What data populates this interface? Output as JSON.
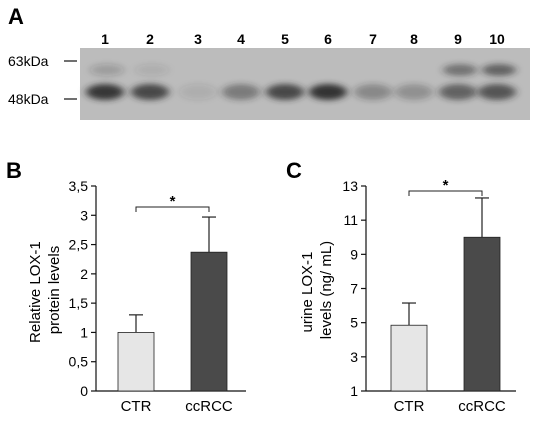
{
  "blot": {
    "panel_label": "A",
    "markers": [
      "63kDa",
      "48kDa"
    ],
    "lanes": [
      "1",
      "2",
      "3",
      "4",
      "5",
      "6",
      "7",
      "8",
      "9",
      "10"
    ],
    "band_intensity": [
      0.9,
      0.8,
      0.1,
      0.45,
      0.8,
      0.95,
      0.35,
      0.3,
      0.6,
      0.7
    ],
    "upper_band_intensity": [
      0.2,
      0.1,
      0,
      0,
      0,
      0,
      0,
      0,
      0.5,
      0.6
    ],
    "background_color": "#bcbcbc",
    "band_color": "#2a2a2a"
  },
  "chart_data": [
    {
      "type": "bar",
      "panel_label": "B",
      "categories": [
        "CTR",
        "ccRCC"
      ],
      "values": [
        1.0,
        2.37
      ],
      "errors": [
        0.3,
        0.6
      ],
      "ylabel": "Relative LOX-1\nprotein levels",
      "ylim": [
        0,
        3.5
      ],
      "yticks": [
        "0",
        "0,5",
        "1",
        "1,5",
        "2",
        "2,5",
        "3",
        "3,5"
      ],
      "significance": "*",
      "colors": [
        "#e6e6e6",
        "#4a4a4a"
      ],
      "grid": false
    },
    {
      "type": "bar",
      "panel_label": "C",
      "categories": [
        "CTR",
        "ccRCC"
      ],
      "values": [
        4.85,
        10.0
      ],
      "errors": [
        1.3,
        2.3
      ],
      "ylabel": "urine LOX-1\nlevels (ng/ mL)",
      "ylim": [
        1,
        13
      ],
      "yticks": [
        "1",
        "3",
        "5",
        "7",
        "9",
        "11",
        "13"
      ],
      "significance": "*",
      "colors": [
        "#e6e6e6",
        "#4a4a4a"
      ],
      "grid": false
    }
  ]
}
